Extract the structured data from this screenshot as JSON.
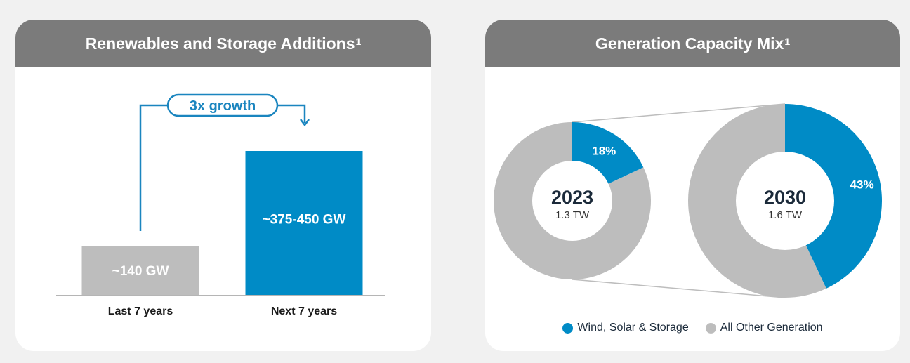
{
  "colors": {
    "blue": "#008bc6",
    "gray": "#bdbdbd",
    "header": "#7b7b7b",
    "arrow": "#1a85bf"
  },
  "left_panel": {
    "title": "Renewables and Storage Additions",
    "superscript": "1",
    "growth_label": "3x growth"
  },
  "right_panel": {
    "title": "Generation Capacity Mix",
    "superscript": "1"
  },
  "chart_data": [
    {
      "type": "bar",
      "title": "Renewables and Storage Additions",
      "categories": [
        "Last 7 years",
        "Next 7 years"
      ],
      "values": [
        140,
        412.5
      ],
      "value_labels": [
        "~140 GW",
        "~375-450 GW"
      ],
      "bar_colors": [
        "#bdbdbd",
        "#008bc6"
      ],
      "ylim": [
        0,
        450
      ],
      "annotation": "3x growth",
      "grid": false
    },
    {
      "type": "pie",
      "title": "Generation Capacity Mix",
      "donuts": [
        {
          "year": "2023",
          "total": "1.3 TW",
          "values": [
            18,
            82
          ],
          "labels": [
            "18%",
            ""
          ]
        },
        {
          "year": "2030",
          "total": "1.6 TW",
          "values": [
            43,
            57
          ],
          "labels": [
            "43%",
            ""
          ]
        }
      ],
      "series_names": [
        "Wind, Solar & Storage",
        "All Other Generation"
      ],
      "series_colors": [
        "#008bc6",
        "#bdbdbd"
      ],
      "legend": [
        "Wind, Solar & Storage",
        "All Other Generation"
      ],
      "legend_position": "bottom"
    }
  ]
}
